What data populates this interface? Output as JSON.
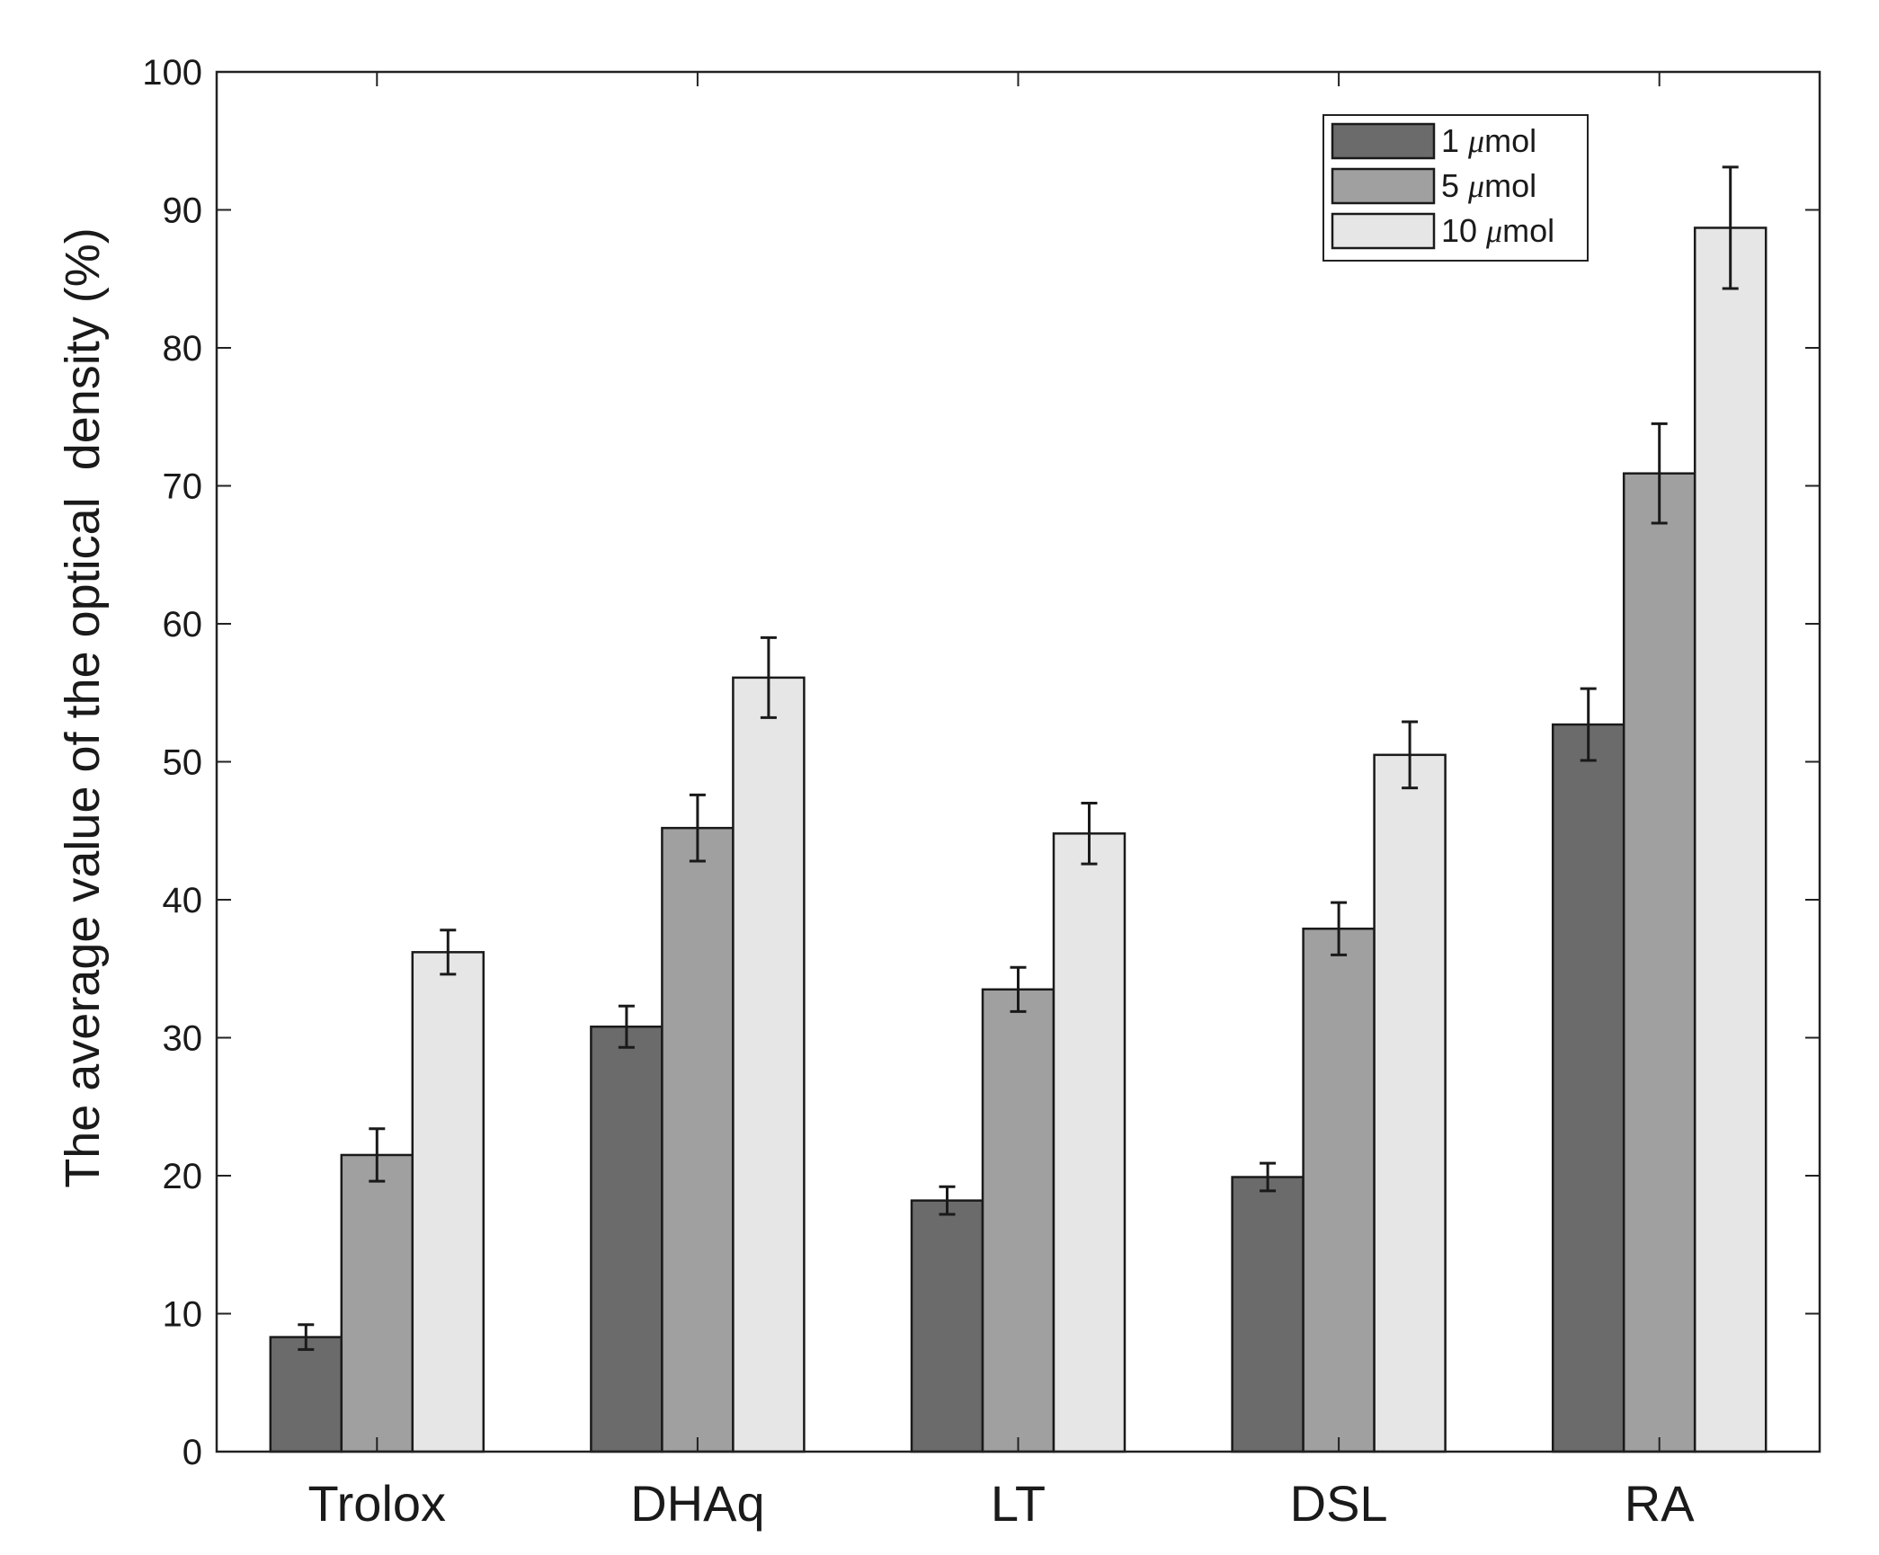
{
  "chart_data": {
    "type": "bar",
    "title": "",
    "xlabel": "",
    "ylabel": "The average value of the optical  density (%)",
    "ylim": [
      0,
      100
    ],
    "yticks": [
      0,
      10,
      20,
      30,
      40,
      50,
      60,
      70,
      80,
      90,
      100
    ],
    "grid": false,
    "legend_position": "top-right",
    "categories": [
      "Trolox",
      "DHAq",
      "LT",
      "DSL",
      "RA"
    ],
    "series": [
      {
        "name": "1 μmol",
        "legend_number": "1",
        "legend_unit": "mol",
        "color": "#6b6b6b",
        "values": [
          8.3,
          30.8,
          18.2,
          19.9,
          52.7
        ],
        "errors": [
          0.9,
          1.5,
          1.0,
          1.0,
          2.6
        ]
      },
      {
        "name": "5 μmol",
        "legend_number": "5",
        "legend_unit": "mol",
        "color": "#a0a0a0",
        "values": [
          21.5,
          45.2,
          33.5,
          37.9,
          70.9
        ],
        "errors": [
          1.9,
          2.4,
          1.6,
          1.9,
          3.6
        ]
      },
      {
        "name": "10 μmol",
        "legend_number": "10",
        "legend_unit": "mol",
        "color": "#e6e6e6",
        "values": [
          36.2,
          56.1,
          44.8,
          50.5,
          88.7
        ],
        "errors": [
          1.6,
          2.9,
          2.2,
          2.4,
          4.4
        ]
      }
    ]
  }
}
